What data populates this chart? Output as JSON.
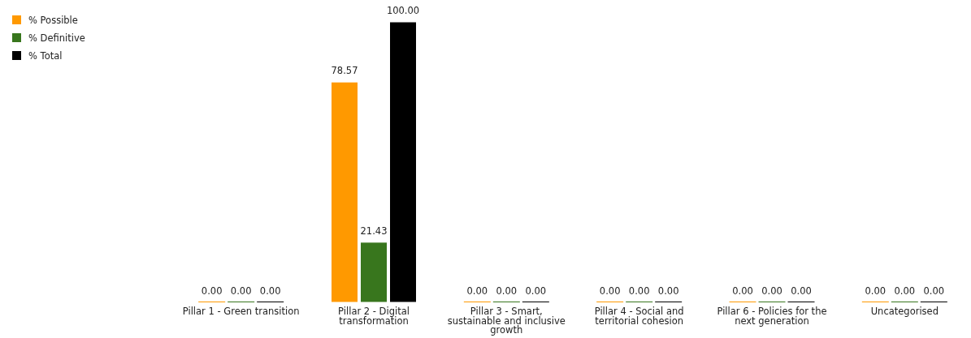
{
  "chart_data": {
    "type": "bar",
    "categories": [
      "Pillar 1 - Green transition",
      "Pillar 2 - Digital transformation",
      "Pillar 3 - Smart, sustainable and inclusive growth",
      "Pillar 4 - Social and territorial cohesion",
      "Pillar 6 - Policies for the next generation",
      "Uncategorised"
    ],
    "series": [
      {
        "name": "% Possible",
        "color": "#ff9900",
        "values": [
          0,
          78.57,
          0,
          0,
          0,
          0
        ],
        "value_labels": [
          "0.00",
          "78.57",
          "0.00",
          "0.00",
          "0.00",
          "0.00"
        ]
      },
      {
        "name": "% Definitive",
        "color": "#38761d",
        "values": [
          0,
          21.43,
          0,
          0,
          0,
          0
        ],
        "value_labels": [
          "0.00",
          "21.43",
          "0.00",
          "0.00",
          "0.00",
          "0.00"
        ]
      },
      {
        "name": "% Total",
        "color": "#000000",
        "values": [
          0,
          100,
          0,
          0,
          0,
          0
        ],
        "value_labels": [
          "0.00",
          "100.00",
          "0.00",
          "0.00",
          "0.00",
          "0.00"
        ]
      }
    ],
    "legend": "top left"
  }
}
